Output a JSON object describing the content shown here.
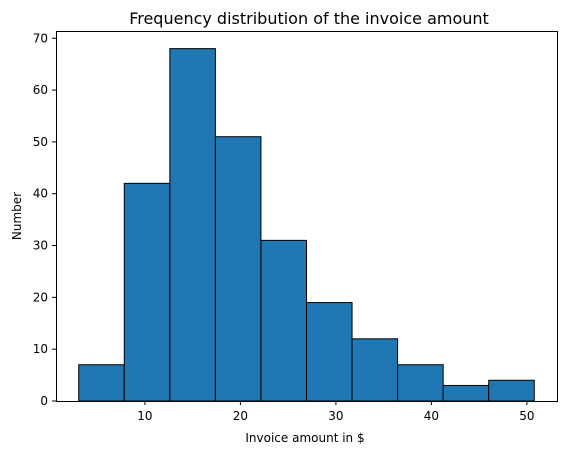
{
  "chart_data": {
    "type": "bar",
    "title": "Frequency distribution of the invoice amount",
    "xlabel": "Invoice amount in $",
    "ylabel": "Number",
    "bin_edges": [
      3.07,
      7.84,
      12.61,
      17.38,
      22.15,
      26.92,
      31.69,
      36.46,
      41.23,
      46.0,
      50.77
    ],
    "values": [
      7,
      42,
      68,
      51,
      31,
      19,
      12,
      7,
      3,
      4
    ],
    "xlim": [
      0.69,
      53.15
    ],
    "ylim": [
      0,
      71.4
    ],
    "xticks": [
      10,
      20,
      30,
      40,
      50
    ],
    "yticks": [
      0,
      10,
      20,
      30,
      40,
      50,
      60,
      70
    ],
    "bar_color": "#1f77b4",
    "edge_color": "#000000",
    "grid": false,
    "legend": "none"
  }
}
